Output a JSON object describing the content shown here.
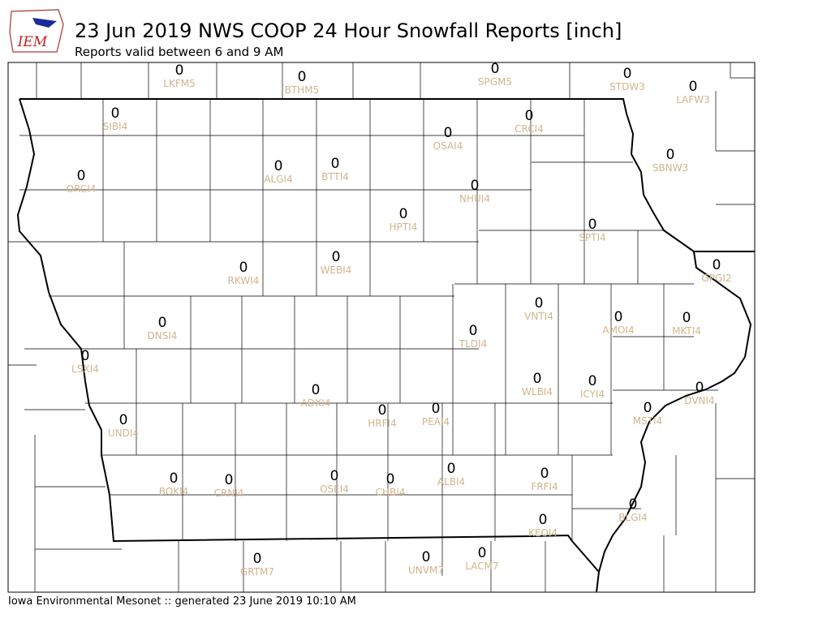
{
  "logo": "IEM",
  "title": "23 Jun 2019 NWS COOP 24 Hour Snowfall Reports [inch]",
  "subtitle": "Reports valid between 6 and 9 AM",
  "footer": "Iowa Environmental Mesonet :: generated 23 June 2019 10:10 AM",
  "stations": [
    {
      "id": "LKFM5",
      "value": 0
    },
    {
      "id": "BTHM5",
      "value": 0
    },
    {
      "id": "SPGM5",
      "value": 0
    },
    {
      "id": "STDW3",
      "value": 0
    },
    {
      "id": "LAFW3",
      "value": 0
    },
    {
      "id": "SIBI4",
      "value": 0
    },
    {
      "id": "CRCI4",
      "value": 0
    },
    {
      "id": "OSAI4",
      "value": 0
    },
    {
      "id": "ORCI4",
      "value": 0
    },
    {
      "id": "ALGI4",
      "value": 0
    },
    {
      "id": "BTTI4",
      "value": 0
    },
    {
      "id": "SBNW3",
      "value": 0
    },
    {
      "id": "NHUI4",
      "value": 0
    },
    {
      "id": "HPTI4",
      "value": 0
    },
    {
      "id": "SPTI4",
      "value": 0
    },
    {
      "id": "GPGI2",
      "value": 0
    },
    {
      "id": "RKWI4",
      "value": 0
    },
    {
      "id": "WEBI4",
      "value": 0
    },
    {
      "id": "VNTI4",
      "value": 0
    },
    {
      "id": "AMOI4",
      "value": 0
    },
    {
      "id": "MKTI4",
      "value": 0
    },
    {
      "id": "DNSI4",
      "value": 0
    },
    {
      "id": "TLDI4",
      "value": 0
    },
    {
      "id": "LSXI4",
      "value": 0
    },
    {
      "id": "WLBI4",
      "value": 0
    },
    {
      "id": "ICYI4",
      "value": 0
    },
    {
      "id": "DVNI4",
      "value": 0
    },
    {
      "id": "ADXI4",
      "value": 0
    },
    {
      "id": "HRFI4",
      "value": 0
    },
    {
      "id": "PEAI4",
      "value": 0
    },
    {
      "id": "MSTI4",
      "value": 0
    },
    {
      "id": "UNDI4",
      "value": 0
    },
    {
      "id": "BOKI4",
      "value": 0
    },
    {
      "id": "CRNI4",
      "value": 0
    },
    {
      "id": "OSEI4",
      "value": 0
    },
    {
      "id": "CHBI4",
      "value": 0
    },
    {
      "id": "ALBI4",
      "value": 0
    },
    {
      "id": "FRFI4",
      "value": 0
    },
    {
      "id": "BLGI4",
      "value": 0
    },
    {
      "id": "KEOI4",
      "value": 0
    },
    {
      "id": "GRTM7",
      "value": 0
    },
    {
      "id": "UNVM7",
      "value": 0
    },
    {
      "id": "LACM7",
      "value": 0
    }
  ]
}
